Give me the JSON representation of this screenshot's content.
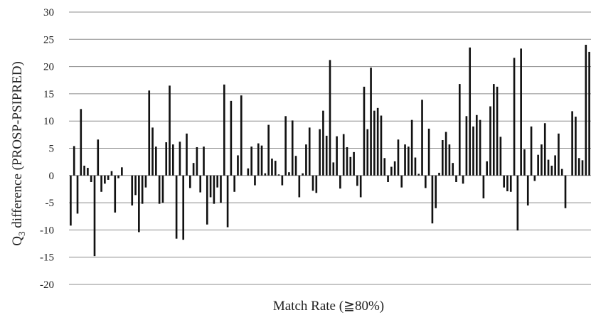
{
  "chart_data": {
    "type": "bar",
    "xlabel": "Match Rate (≧80%)",
    "ylabel_main": "Q",
    "ylabel_sub": "3",
    "ylabel_rest": " difference (PROSP-PSIPRED)",
    "ylim": [
      -20,
      30
    ],
    "yticks": [
      "30",
      "25",
      "20",
      "15",
      "10",
      "5",
      "0",
      "-5",
      "-10",
      "-15",
      "-20"
    ],
    "grid": true,
    "bar_color": "#111111",
    "values": [
      -9.2,
      5.4,
      -7.0,
      12.2,
      1.8,
      1.4,
      -1.2,
      -14.8,
      6.6,
      -3.0,
      -1.5,
      -0.8,
      0.8,
      -6.8,
      -0.5,
      1.5,
      0.0,
      0.0,
      -5.5,
      -3.6,
      -10.4,
      -5.2,
      -2.2,
      15.6,
      8.8,
      5.3,
      -5.2,
      -5.0,
      6.1,
      16.5,
      5.7,
      -11.6,
      6.2,
      -11.8,
      7.7,
      -2.3,
      2.3,
      5.2,
      -3.1,
      5.3,
      -9.0,
      -4.0,
      -5.2,
      -2.2,
      -5.0,
      16.7,
      -9.5,
      13.7,
      -3.0,
      3.7,
      14.7,
      0.0,
      1.3,
      5.3,
      -1.8,
      5.9,
      5.5,
      0.4,
      9.3,
      3.1,
      2.7,
      0.2,
      -1.8,
      10.9,
      0.6,
      10.1,
      3.6,
      -4.0,
      0.4,
      5.7,
      8.8,
      -2.8,
      -3.2,
      8.5,
      11.9,
      7.3,
      21.2,
      2.4,
      7.2,
      -2.4,
      7.6,
      5.2,
      3.4,
      4.3,
      -1.9,
      -4.0,
      16.3,
      8.5,
      19.8,
      11.9,
      12.4,
      11.0,
      3.2,
      -1.2,
      1.6,
      2.6,
      6.6,
      -2.2,
      5.7,
      5.3,
      10.2,
      3.3,
      0.3,
      13.9,
      -2.3,
      8.6,
      -8.8,
      -6.0,
      0.5,
      6.5,
      8.0,
      5.7,
      2.3,
      -1.2,
      16.8,
      -1.5,
      10.9,
      23.5,
      9.0,
      11.1,
      10.2,
      -4.2,
      2.6,
      12.7,
      16.8,
      16.3,
      7.1,
      -2.2,
      -2.9,
      -3.0,
      21.6,
      -10.1,
      23.3,
      4.8,
      -5.5,
      9.0,
      -1.0,
      3.8,
      5.7,
      9.6,
      2.9,
      1.8,
      3.7,
      7.7,
      1.2,
      -6.0,
      0.0,
      11.8,
      10.8,
      3.2,
      2.8,
      24.0,
      22.7
    ]
  }
}
